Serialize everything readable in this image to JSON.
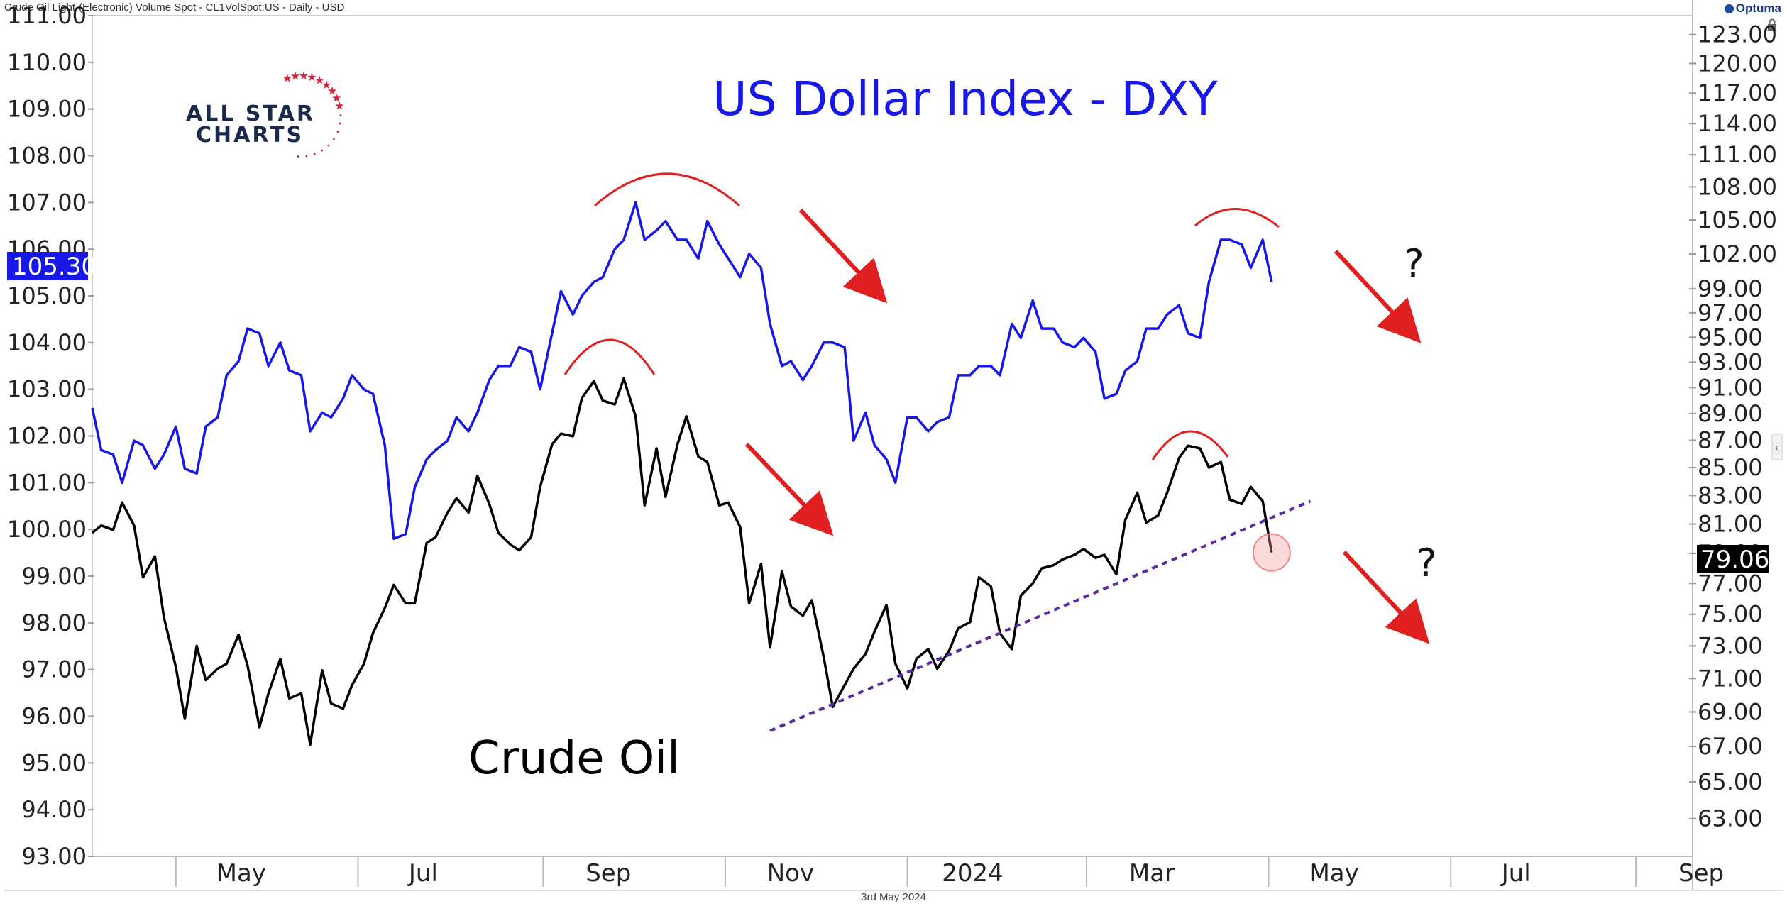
{
  "header": {
    "left_text": "Crude Oil Light-(Electronic) Volume Spot - CL1VolSpot:US - Daily - USD",
    "brand": "Optuma"
  },
  "footer": {
    "date": "3rd May 2024"
  },
  "colors": {
    "dxy": "#1717e6",
    "crude": "#000000",
    "annotation": "#e02020",
    "trendline": "#5a2aa0",
    "badge_dxy_bg": "#1717e6",
    "badge_crude_bg": "#000000"
  },
  "chart_data": {
    "type": "line",
    "title": "US Dollar Index - DXY",
    "annotation_crude": "Crude Oil",
    "question_marks": [
      "?",
      "?"
    ],
    "logo": [
      "ALL STAR",
      "CHARTS"
    ],
    "x_ticks": [
      "May",
      "Jul",
      "Sep",
      "Nov",
      "2024",
      "Mar",
      "May",
      "Jul",
      "Sep"
    ],
    "left_axis": {
      "series": "DXY",
      "ylim": [
        93.0,
        111.0
      ],
      "ticks": [
        "111.00",
        "110.00",
        "109.00",
        "108.00",
        "107.00",
        "106.00",
        "105.00",
        "104.00",
        "103.00",
        "102.00",
        "101.00",
        "100.00",
        "99.00",
        "98.00",
        "97.00",
        "96.00",
        "95.00",
        "94.00",
        "93.00"
      ],
      "last_value": "105.30"
    },
    "right_axis": {
      "series": "Crude Oil",
      "scale": "log",
      "ylim": [
        61.0,
        125.0
      ],
      "ticks": [
        "123.00",
        "120.00",
        "117.00",
        "114.00",
        "111.00",
        "108.00",
        "105.00",
        "102.00",
        "99.00",
        "97.00",
        "95.00",
        "93.00",
        "91.00",
        "89.00",
        "87.00",
        "85.00",
        "83.00",
        "81.00",
        "79.00",
        "77.00",
        "75.00",
        "73.00",
        "71.00",
        "69.00",
        "67.00",
        "65.00",
        "63.00"
      ],
      "last_value": "79.06"
    },
    "series": [
      {
        "name": "DXY",
        "axis": "left",
        "points": [
          [
            "2023-04-03",
            102.6
          ],
          [
            "2023-04-06",
            101.7
          ],
          [
            "2023-04-10",
            101.6
          ],
          [
            "2023-04-13",
            101.0
          ],
          [
            "2023-04-17",
            101.9
          ],
          [
            "2023-04-20",
            101.8
          ],
          [
            "2023-04-24",
            101.3
          ],
          [
            "2023-04-27",
            101.6
          ],
          [
            "2023-05-01",
            102.2
          ],
          [
            "2023-05-04",
            101.3
          ],
          [
            "2023-05-08",
            101.2
          ],
          [
            "2023-05-11",
            102.2
          ],
          [
            "2023-05-15",
            102.4
          ],
          [
            "2023-05-18",
            103.3
          ],
          [
            "2023-05-22",
            103.6
          ],
          [
            "2023-05-25",
            104.3
          ],
          [
            "2023-05-29",
            104.2
          ],
          [
            "2023-06-01",
            103.5
          ],
          [
            "2023-06-05",
            104.0
          ],
          [
            "2023-06-08",
            103.4
          ],
          [
            "2023-06-12",
            103.3
          ],
          [
            "2023-06-15",
            102.1
          ],
          [
            "2023-06-19",
            102.5
          ],
          [
            "2023-06-22",
            102.4
          ],
          [
            "2023-06-26",
            102.8
          ],
          [
            "2023-06-29",
            103.3
          ],
          [
            "2023-07-03",
            103.0
          ],
          [
            "2023-07-06",
            102.9
          ],
          [
            "2023-07-10",
            101.8
          ],
          [
            "2023-07-13",
            99.8
          ],
          [
            "2023-07-17",
            99.9
          ],
          [
            "2023-07-20",
            100.9
          ],
          [
            "2023-07-24",
            101.5
          ],
          [
            "2023-07-27",
            101.7
          ],
          [
            "2023-07-31",
            101.9
          ],
          [
            "2023-08-03",
            102.4
          ],
          [
            "2023-08-07",
            102.1
          ],
          [
            "2023-08-10",
            102.5
          ],
          [
            "2023-08-14",
            103.2
          ],
          [
            "2023-08-17",
            103.5
          ],
          [
            "2023-08-21",
            103.5
          ],
          [
            "2023-08-24",
            103.9
          ],
          [
            "2023-08-28",
            103.8
          ],
          [
            "2023-08-31",
            103.0
          ],
          [
            "2023-09-04",
            104.2
          ],
          [
            "2023-09-07",
            105.1
          ],
          [
            "2023-09-11",
            104.6
          ],
          [
            "2023-09-14",
            105.0
          ],
          [
            "2023-09-18",
            105.3
          ],
          [
            "2023-09-21",
            105.4
          ],
          [
            "2023-09-25",
            106.0
          ],
          [
            "2023-09-28",
            106.2
          ],
          [
            "2023-10-02",
            107.0
          ],
          [
            "2023-10-05",
            106.2
          ],
          [
            "2023-10-09",
            106.4
          ],
          [
            "2023-10-12",
            106.6
          ],
          [
            "2023-10-16",
            106.2
          ],
          [
            "2023-10-19",
            106.2
          ],
          [
            "2023-10-23",
            105.8
          ],
          [
            "2023-10-26",
            106.6
          ],
          [
            "2023-10-30",
            106.1
          ],
          [
            "2023-11-02",
            105.8
          ],
          [
            "2023-11-06",
            105.4
          ],
          [
            "2023-11-09",
            105.9
          ],
          [
            "2023-11-13",
            105.6
          ],
          [
            "2023-11-16",
            104.4
          ],
          [
            "2023-11-20",
            103.5
          ],
          [
            "2023-11-23",
            103.6
          ],
          [
            "2023-11-27",
            103.2
          ],
          [
            "2023-11-30",
            103.5
          ],
          [
            "2023-12-04",
            104.0
          ],
          [
            "2023-12-07",
            104.0
          ],
          [
            "2023-12-11",
            103.9
          ],
          [
            "2023-12-14",
            101.9
          ],
          [
            "2023-12-18",
            102.5
          ],
          [
            "2023-12-21",
            101.8
          ],
          [
            "2023-12-25",
            101.5
          ],
          [
            "2023-12-28",
            101.0
          ],
          [
            "2024-01-01",
            102.4
          ],
          [
            "2024-01-04",
            102.4
          ],
          [
            "2024-01-08",
            102.1
          ],
          [
            "2024-01-11",
            102.3
          ],
          [
            "2024-01-15",
            102.4
          ],
          [
            "2024-01-18",
            103.3
          ],
          [
            "2024-01-22",
            103.3
          ],
          [
            "2024-01-25",
            103.5
          ],
          [
            "2024-01-29",
            103.5
          ],
          [
            "2024-02-01",
            103.3
          ],
          [
            "2024-02-05",
            104.4
          ],
          [
            "2024-02-08",
            104.1
          ],
          [
            "2024-02-12",
            104.9
          ],
          [
            "2024-02-15",
            104.3
          ],
          [
            "2024-02-19",
            104.3
          ],
          [
            "2024-02-22",
            104.0
          ],
          [
            "2024-02-26",
            103.9
          ],
          [
            "2024-02-29",
            104.1
          ],
          [
            "2024-03-04",
            103.8
          ],
          [
            "2024-03-07",
            102.8
          ],
          [
            "2024-03-11",
            102.9
          ],
          [
            "2024-03-14",
            103.4
          ],
          [
            "2024-03-18",
            103.6
          ],
          [
            "2024-03-21",
            104.3
          ],
          [
            "2024-03-25",
            104.3
          ],
          [
            "2024-03-28",
            104.6
          ],
          [
            "2024-04-01",
            104.8
          ],
          [
            "2024-04-04",
            104.2
          ],
          [
            "2024-04-08",
            104.1
          ],
          [
            "2024-04-11",
            105.3
          ],
          [
            "2024-04-15",
            106.2
          ],
          [
            "2024-04-18",
            106.2
          ],
          [
            "2024-04-22",
            106.1
          ],
          [
            "2024-04-25",
            105.6
          ],
          [
            "2024-04-29",
            106.2
          ],
          [
            "2024-05-02",
            105.3
          ]
        ]
      },
      {
        "name": "Crude Oil",
        "axis": "right",
        "points": [
          [
            "2023-04-03",
            80.4
          ],
          [
            "2023-04-06",
            80.9
          ],
          [
            "2023-04-10",
            80.6
          ],
          [
            "2023-04-13",
            82.5
          ],
          [
            "2023-04-17",
            80.9
          ],
          [
            "2023-04-20",
            77.4
          ],
          [
            "2023-04-24",
            78.8
          ],
          [
            "2023-04-27",
            74.8
          ],
          [
            "2023-05-01",
            71.7
          ],
          [
            "2023-05-04",
            68.6
          ],
          [
            "2023-05-08",
            73.0
          ],
          [
            "2023-05-11",
            70.9
          ],
          [
            "2023-05-15",
            71.6
          ],
          [
            "2023-05-18",
            71.9
          ],
          [
            "2023-05-22",
            73.7
          ],
          [
            "2023-05-25",
            71.8
          ],
          [
            "2023-05-29",
            68.1
          ],
          [
            "2023-06-01",
            70.1
          ],
          [
            "2023-06-05",
            72.2
          ],
          [
            "2023-06-08",
            69.8
          ],
          [
            "2023-06-12",
            70.1
          ],
          [
            "2023-06-15",
            67.1
          ],
          [
            "2023-06-19",
            71.5
          ],
          [
            "2023-06-22",
            69.5
          ],
          [
            "2023-06-26",
            69.2
          ],
          [
            "2023-06-29",
            70.6
          ],
          [
            "2023-07-03",
            71.9
          ],
          [
            "2023-07-06",
            73.8
          ],
          [
            "2023-07-10",
            75.4
          ],
          [
            "2023-07-13",
            76.9
          ],
          [
            "2023-07-17",
            75.7
          ],
          [
            "2023-07-20",
            75.7
          ],
          [
            "2023-07-24",
            79.7
          ],
          [
            "2023-07-27",
            80.1
          ],
          [
            "2023-07-31",
            81.8
          ],
          [
            "2023-08-03",
            82.8
          ],
          [
            "2023-08-07",
            81.8
          ],
          [
            "2023-08-10",
            84.4
          ],
          [
            "2023-08-14",
            82.4
          ],
          [
            "2023-08-17",
            80.4
          ],
          [
            "2023-08-21",
            79.6
          ],
          [
            "2023-08-24",
            79.2
          ],
          [
            "2023-08-28",
            80.1
          ],
          [
            "2023-08-31",
            83.6
          ],
          [
            "2023-09-04",
            86.7
          ],
          [
            "2023-09-07",
            87.5
          ],
          [
            "2023-09-11",
            87.3
          ],
          [
            "2023-09-14",
            90.2
          ],
          [
            "2023-09-18",
            91.5
          ],
          [
            "2023-09-21",
            90.0
          ],
          [
            "2023-09-25",
            89.7
          ],
          [
            "2023-09-28",
            91.7
          ],
          [
            "2023-10-02",
            88.8
          ],
          [
            "2023-10-05",
            82.3
          ],
          [
            "2023-10-09",
            86.4
          ],
          [
            "2023-10-12",
            82.9
          ],
          [
            "2023-10-16",
            86.7
          ],
          [
            "2023-10-19",
            88.8
          ],
          [
            "2023-10-23",
            85.8
          ],
          [
            "2023-10-26",
            85.4
          ],
          [
            "2023-10-30",
            82.3
          ],
          [
            "2023-11-02",
            82.5
          ],
          [
            "2023-11-06",
            80.8
          ],
          [
            "2023-11-09",
            75.7
          ],
          [
            "2023-11-13",
            78.3
          ],
          [
            "2023-11-16",
            72.9
          ],
          [
            "2023-11-20",
            77.8
          ],
          [
            "2023-11-23",
            75.5
          ],
          [
            "2023-11-27",
            74.9
          ],
          [
            "2023-11-30",
            75.9
          ],
          [
            "2023-12-04",
            72.3
          ],
          [
            "2023-12-07",
            69.3
          ],
          [
            "2023-12-11",
            70.6
          ],
          [
            "2023-12-14",
            71.6
          ],
          [
            "2023-12-18",
            72.5
          ],
          [
            "2023-12-21",
            73.9
          ],
          [
            "2023-12-25",
            75.6
          ],
          [
            "2023-12-28",
            71.9
          ],
          [
            "2024-01-01",
            70.4
          ],
          [
            "2024-01-04",
            72.2
          ],
          [
            "2024-01-08",
            72.8
          ],
          [
            "2024-01-11",
            71.6
          ],
          [
            "2024-01-15",
            72.7
          ],
          [
            "2024-01-18",
            74.1
          ],
          [
            "2024-01-22",
            74.5
          ],
          [
            "2024-01-25",
            77.4
          ],
          [
            "2024-01-29",
            76.8
          ],
          [
            "2024-02-01",
            73.8
          ],
          [
            "2024-02-05",
            72.8
          ],
          [
            "2024-02-08",
            76.2
          ],
          [
            "2024-02-12",
            77.0
          ],
          [
            "2024-02-15",
            78.0
          ],
          [
            "2024-02-19",
            78.2
          ],
          [
            "2024-02-22",
            78.6
          ],
          [
            "2024-02-26",
            78.9
          ],
          [
            "2024-02-29",
            79.3
          ],
          [
            "2024-03-04",
            78.7
          ],
          [
            "2024-03-07",
            78.9
          ],
          [
            "2024-03-11",
            77.6
          ],
          [
            "2024-03-14",
            81.3
          ],
          [
            "2024-03-18",
            83.2
          ],
          [
            "2024-03-21",
            81.1
          ],
          [
            "2024-03-25",
            81.6
          ],
          [
            "2024-03-28",
            83.2
          ],
          [
            "2024-04-01",
            85.7
          ],
          [
            "2024-04-04",
            86.6
          ],
          [
            "2024-04-08",
            86.4
          ],
          [
            "2024-04-11",
            85.0
          ],
          [
            "2024-04-15",
            85.4
          ],
          [
            "2024-04-18",
            82.7
          ],
          [
            "2024-04-22",
            82.4
          ],
          [
            "2024-04-25",
            83.6
          ],
          [
            "2024-04-29",
            82.6
          ],
          [
            "2024-05-02",
            79.06
          ]
        ]
      }
    ],
    "trendline": {
      "axis": "right",
      "from": [
        "2023-11-16",
        67.9
      ],
      "to": [
        "2024-05-15",
        82.6
      ],
      "style": "dotted"
    },
    "highlight_point": {
      "axis": "right",
      "date": "2024-05-02",
      "value": 79.06
    }
  }
}
